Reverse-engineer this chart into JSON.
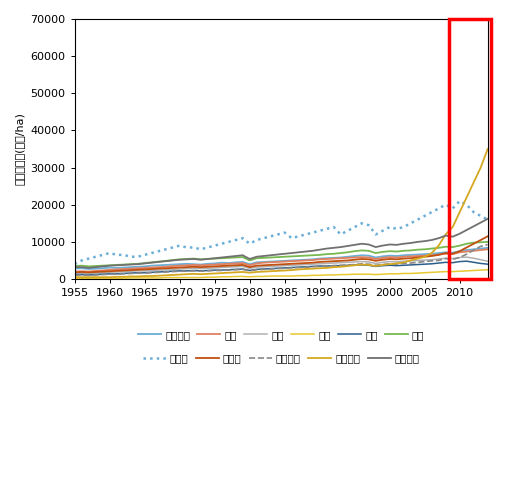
{
  "years": [
    1955,
    1956,
    1957,
    1958,
    1959,
    1960,
    1961,
    1962,
    1963,
    1964,
    1965,
    1966,
    1967,
    1968,
    1969,
    1970,
    1971,
    1972,
    1973,
    1974,
    1975,
    1976,
    1977,
    1978,
    1979,
    1980,
    1981,
    1982,
    1983,
    1984,
    1985,
    1986,
    1987,
    1988,
    1989,
    1990,
    1991,
    1992,
    1993,
    1994,
    1995,
    1996,
    1997,
    1998,
    1999,
    2000,
    2001,
    2002,
    2003,
    2004,
    2005,
    2006,
    2007,
    2008,
    2009,
    2010,
    2011,
    2012,
    2013,
    2014
  ],
  "series": {
    "경종부문": {
      "color": "#6baed6",
      "linestyle": "-",
      "linewidth": 1.3,
      "values": [
        2800,
        2900,
        2700,
        2800,
        2900,
        3100,
        3000,
        3100,
        3200,
        3300,
        3400,
        3600,
        3700,
        3800,
        3900,
        4000,
        4100,
        4000,
        3900,
        4100,
        4200,
        4400,
        4300,
        4500,
        4600,
        4000,
        4500,
        4600,
        4700,
        4800,
        4900,
        5000,
        5100,
        5200,
        5300,
        5500,
        5600,
        5700,
        5800,
        6000,
        6200,
        6400,
        6300,
        5800,
        6100,
        6300,
        6200,
        6400,
        6500,
        6600,
        6700,
        6800,
        7000,
        7200,
        7100,
        7500,
        7800,
        8000,
        8200,
        8400
      ]
    },
    "미곡": {
      "color": "#e08060",
      "linestyle": "-",
      "linewidth": 1.3,
      "values": [
        2000,
        2100,
        2000,
        2200,
        2300,
        2500,
        2600,
        2700,
        2800,
        2900,
        3000,
        3100,
        3200,
        3300,
        3500,
        3600,
        3700,
        3800,
        3700,
        3800,
        3900,
        4000,
        4100,
        4200,
        4300,
        3700,
        4200,
        4400,
        4500,
        4600,
        4700,
        4800,
        4900,
        5000,
        5100,
        5300,
        5400,
        5500,
        5600,
        5700,
        5800,
        5900,
        5800,
        5400,
        5700,
        5900,
        5800,
        6000,
        6100,
        6200,
        6300,
        6400,
        6600,
        6800,
        6700,
        7200,
        7400,
        7600,
        7800,
        8000
      ]
    },
    "맥류": {
      "color": "#b0b0b0",
      "linestyle": "-",
      "linewidth": 1.1,
      "values": [
        1500,
        1600,
        1500,
        1600,
        1700,
        1800,
        1900,
        2000,
        2100,
        2200,
        2200,
        2300,
        2400,
        2500,
        2600,
        2700,
        2800,
        2900,
        2800,
        2900,
        3000,
        3100,
        3200,
        3300,
        3400,
        2900,
        3200,
        3300,
        3400,
        3500,
        3600,
        3700,
        3800,
        3900,
        4000,
        4100,
        4200,
        4300,
        4400,
        4500,
        4600,
        4700,
        4600,
        4200,
        4500,
        4700,
        4600,
        4800,
        4900,
        5000,
        5100,
        5200,
        5400,
        5600,
        5500,
        5800,
        5900,
        5600,
        5200,
        4800
      ]
    },
    "잡곡": {
      "color": "#e8c830",
      "linestyle": "-",
      "linewidth": 1.1,
      "values": [
        200,
        200,
        200,
        200,
        200,
        200,
        200,
        200,
        300,
        300,
        300,
        300,
        300,
        400,
        400,
        400,
        400,
        400,
        400,
        500,
        500,
        600,
        600,
        700,
        700,
        600,
        700,
        700,
        800,
        800,
        800,
        800,
        900,
        900,
        1000,
        1000,
        1100,
        1100,
        1200,
        1200,
        1300,
        1300,
        1300,
        1200,
        1300,
        1400,
        1400,
        1500,
        1500,
        1600,
        1700,
        1800,
        1900,
        2000,
        2000,
        2100,
        2200,
        2300,
        2400,
        2500
      ]
    },
    "두류": {
      "color": "#2c5f8a",
      "linestyle": "-",
      "linewidth": 1.1,
      "values": [
        1200,
        1200,
        1100,
        1200,
        1300,
        1400,
        1400,
        1500,
        1600,
        1700,
        1700,
        1800,
        1900,
        2000,
        2100,
        2200,
        2200,
        2300,
        2200,
        2300,
        2400,
        2400,
        2500,
        2600,
        2700,
        2300,
        2600,
        2700,
        2800,
        2900,
        3000,
        3100,
        3200,
        3300,
        3400,
        3500,
        3500,
        3600,
        3600,
        3700,
        3800,
        3800,
        3700,
        3400,
        3600,
        3700,
        3600,
        3700,
        3800,
        3900,
        4000,
        4100,
        4300,
        4500,
        4400,
        4700,
        4800,
        4500,
        4200,
        4000
      ]
    },
    "서류": {
      "color": "#78b850",
      "linestyle": "-",
      "linewidth": 1.3,
      "values": [
        3500,
        3600,
        3400,
        3500,
        3600,
        3700,
        3800,
        3900,
        4000,
        4100,
        4300,
        4500,
        4700,
        4900,
        5100,
        5300,
        5400,
        5500,
        5300,
        5400,
        5500,
        5600,
        5700,
        5800,
        5900,
        5000,
        5600,
        5700,
        5800,
        5900,
        6000,
        6100,
        6200,
        6300,
        6400,
        6500,
        6700,
        6800,
        7000,
        7200,
        7500,
        7700,
        7600,
        7000,
        7300,
        7500,
        7400,
        7600,
        7700,
        7900,
        8000,
        8200,
        8400,
        8700,
        8600,
        9000,
        9500,
        9800,
        9900,
        10000
      ]
    },
    "과일류": {
      "color": "#6baed6",
      "linestyle": ":",
      "linewidth": 1.8,
      "values": [
        4000,
        5000,
        5500,
        6000,
        6500,
        7000,
        6500,
        6500,
        6000,
        6000,
        6500,
        7000,
        7500,
        8000,
        8500,
        9000,
        8500,
        8500,
        8000,
        8500,
        9000,
        9500,
        10000,
        10500,
        11000,
        9500,
        10500,
        11000,
        11500,
        12000,
        12500,
        11000,
        11500,
        12000,
        12500,
        13000,
        13500,
        14000,
        12000,
        13000,
        14000,
        15000,
        14500,
        12000,
        13000,
        14000,
        13500,
        14000,
        15000,
        16000,
        17000,
        18000,
        19000,
        20000,
        19000,
        21000,
        20000,
        18000,
        17000,
        16000
      ]
    },
    "채소류": {
      "color": "#c05010",
      "linestyle": "-",
      "linewidth": 1.3,
      "values": [
        1800,
        1900,
        1800,
        1900,
        2000,
        2100,
        2200,
        2300,
        2400,
        2500,
        2600,
        2700,
        2800,
        2900,
        3000,
        3100,
        3200,
        3300,
        3200,
        3300,
        3400,
        3500,
        3600,
        3700,
        3800,
        3200,
        3600,
        3700,
        3800,
        3900,
        4000,
        4100,
        4200,
        4300,
        4400,
        4600,
        4700,
        4800,
        4900,
        5000,
        5200,
        5400,
        5300,
        4900,
        5200,
        5400,
        5300,
        5500,
        5600,
        5800,
        6000,
        6200,
        6500,
        7000,
        6800,
        7500,
        8500,
        9500,
        10500,
        11500
      ]
    },
    "노지채소": {
      "color": "#888888",
      "linestyle": "--",
      "linewidth": 1.2,
      "values": [
        1000,
        1100,
        1000,
        1100,
        1200,
        1300,
        1300,
        1400,
        1500,
        1600,
        1600,
        1700,
        1800,
        1900,
        2000,
        2100,
        2100,
        2200,
        2100,
        2200,
        2300,
        2300,
        2400,
        2500,
        2600,
        2200,
        2500,
        2600,
        2700,
        2800,
        2900,
        3000,
        3100,
        3200,
        3300,
        3400,
        3500,
        3600,
        3700,
        3800,
        3900,
        4100,
        4000,
        3700,
        3900,
        4100,
        4000,
        4200,
        4300,
        4500,
        4700,
        4900,
        5000,
        5500,
        5300,
        5800,
        6700,
        7800,
        8800,
        9300
      ]
    },
    "시설채소": {
      "color": "#d4a820",
      "linestyle": "-",
      "linewidth": 1.3,
      "values": [
        500,
        500,
        500,
        500,
        500,
        500,
        600,
        600,
        700,
        700,
        800,
        800,
        900,
        1000,
        1100,
        1200,
        1300,
        1400,
        1300,
        1400,
        1500,
        1600,
        1700,
        1800,
        1900,
        1700,
        1900,
        2000,
        2100,
        2200,
        2300,
        2400,
        2600,
        2700,
        2800,
        2900,
        3000,
        3200,
        3300,
        3500,
        3700,
        3900,
        3800,
        3500,
        3800,
        4000,
        4200,
        4500,
        5000,
        5500,
        6000,
        7000,
        9000,
        12000,
        14000,
        18000,
        22000,
        26000,
        30000,
        35000
      ]
    },
    "특용작물": {
      "color": "#707070",
      "linestyle": "-",
      "linewidth": 1.3,
      "values": [
        3200,
        3200,
        3000,
        3200,
        3400,
        3600,
        3700,
        3800,
        3900,
        4000,
        4200,
        4400,
        4600,
        4800,
        5000,
        5200,
        5300,
        5400,
        5200,
        5400,
        5600,
        5800,
        6000,
        6200,
        6400,
        5400,
        6000,
        6200,
        6400,
        6600,
        6800,
        7000,
        7200,
        7400,
        7600,
        7900,
        8200,
        8400,
        8600,
        8900,
        9200,
        9500,
        9300,
        8600,
        9000,
        9300,
        9200,
        9500,
        9700,
        10000,
        10200,
        10500,
        11000,
        11700,
        11400,
        12200,
        13200,
        14200,
        15200,
        16200
      ]
    }
  },
  "ylabel": "토지생산성(천원/ha)",
  "ylim": [
    0,
    70000
  ],
  "yticks": [
    0,
    10000,
    20000,
    30000,
    40000,
    50000,
    60000,
    70000
  ],
  "xlim": [
    1955,
    2014
  ],
  "xticks": [
    1955,
    1960,
    1965,
    1970,
    1975,
    1980,
    1985,
    1990,
    1995,
    2000,
    2005,
    2010
  ],
  "rect_x1": 2008.5,
  "rect_x2": 2014.5,
  "rect_y1": 0,
  "rect_y2": 70000,
  "rect_color": "red",
  "legend_row1": [
    "경종부문",
    "미곡",
    "맥류",
    "잡곡",
    "두류",
    "서류"
  ],
  "legend_row2": [
    "과일류",
    "채소류",
    "노지채소",
    "시설채소",
    "특용작물"
  ]
}
